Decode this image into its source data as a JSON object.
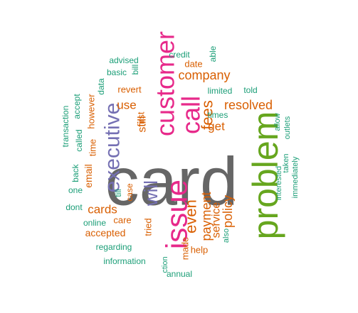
{
  "colors": {
    "background": "#ffffff",
    "teal": "#1b9e77",
    "orange": "#d95f02",
    "purple": "#7570b3",
    "magenta": "#e7298a",
    "green": "#66a61e",
    "gray": "#666666"
  },
  "words": [
    {
      "id": "card",
      "text": "card",
      "color": "gray",
      "rank": 1
    },
    {
      "id": "problem",
      "text": "problem",
      "color": "green",
      "rank": 2
    },
    {
      "id": "issue",
      "text": "issue",
      "color": "magenta",
      "rank": 3
    },
    {
      "id": "customer",
      "text": "customer",
      "color": "magenta",
      "rank": 3
    },
    {
      "id": "executive",
      "text": "executive",
      "color": "purple",
      "rank": 4
    },
    {
      "id": "call",
      "text": "call",
      "color": "magenta",
      "rank": 4
    },
    {
      "id": "will",
      "text": "will",
      "color": "purple",
      "rank": 5
    },
    {
      "id": "even",
      "text": "even",
      "color": "orange",
      "rank": 6
    },
    {
      "id": "fees",
      "text": "fees",
      "color": "orange",
      "rank": 6
    },
    {
      "id": "company",
      "text": "company",
      "color": "orange",
      "rank": 7
    },
    {
      "id": "resolved",
      "text": "resolved",
      "color": "orange",
      "rank": 7
    },
    {
      "id": "payment",
      "text": "payment",
      "color": "orange",
      "rank": 7
    },
    {
      "id": "policy",
      "text": "policy",
      "color": "orange",
      "rank": 7
    },
    {
      "id": "cards",
      "text": "cards",
      "color": "orange",
      "rank": 7
    },
    {
      "id": "service",
      "text": "service",
      "color": "orange",
      "rank": 7
    },
    {
      "id": "get",
      "text": "get",
      "color": "orange",
      "rank": 7
    },
    {
      "id": "use",
      "text": "use",
      "color": "orange",
      "rank": 7
    },
    {
      "id": "still",
      "text": "still",
      "color": "orange",
      "rank": 7
    },
    {
      "id": "accepted",
      "text": "accepted",
      "color": "orange",
      "rank": 8
    },
    {
      "id": "email",
      "text": "email",
      "color": "orange",
      "rank": 8
    },
    {
      "id": "however",
      "text": "however",
      "color": "orange",
      "rank": 8
    },
    {
      "id": "time",
      "text": "time",
      "color": "orange",
      "rank": 8
    },
    {
      "id": "revert",
      "text": "revert",
      "color": "orange",
      "rank": 8
    },
    {
      "id": "date",
      "text": "date",
      "color": "orange",
      "rank": 8
    },
    {
      "id": "first",
      "text": "first",
      "color": "orange",
      "rank": 8
    },
    {
      "id": "case",
      "text": "case",
      "color": "orange",
      "rank": 8
    },
    {
      "id": "care",
      "text": "care",
      "color": "orange",
      "rank": 8
    },
    {
      "id": "tried",
      "text": "tried",
      "color": "orange",
      "rank": 8
    },
    {
      "id": "made",
      "text": "made",
      "color": "orange",
      "rank": 8
    },
    {
      "id": "help",
      "text": "help",
      "color": "orange",
      "rank": 8
    },
    {
      "id": "times",
      "text": "times",
      "color": "teal",
      "rank": 9
    },
    {
      "id": "limited",
      "text": "limited",
      "color": "teal",
      "rank": 9
    },
    {
      "id": "told",
      "text": "told",
      "color": "teal",
      "rank": 9
    },
    {
      "id": "credit",
      "text": "credit",
      "color": "teal",
      "rank": 9
    },
    {
      "id": "able",
      "text": "able",
      "color": "teal",
      "rank": 9
    },
    {
      "id": "advised",
      "text": "advised",
      "color": "teal",
      "rank": 9
    },
    {
      "id": "basic",
      "text": "basic",
      "color": "teal",
      "rank": 9
    },
    {
      "id": "bill",
      "text": "bill",
      "color": "teal",
      "rank": 9
    },
    {
      "id": "data",
      "text": "data",
      "color": "teal",
      "rank": 9
    },
    {
      "id": "accept",
      "text": "accept",
      "color": "teal",
      "rank": 9
    },
    {
      "id": "called",
      "text": "called",
      "color": "teal",
      "rank": 9
    },
    {
      "id": "transaction",
      "text": "transaction",
      "color": "teal",
      "rank": 9
    },
    {
      "id": "back",
      "text": "back",
      "color": "teal",
      "rank": 9
    },
    {
      "id": "one",
      "text": "one",
      "color": "teal",
      "rank": 9
    },
    {
      "id": "till",
      "text": "till",
      "color": "teal",
      "rank": 9
    },
    {
      "id": "dont",
      "text": "dont",
      "color": "teal",
      "rank": 9
    },
    {
      "id": "online",
      "text": "online",
      "color": "teal",
      "rank": 9
    },
    {
      "id": "regarding",
      "text": "regarding",
      "color": "teal",
      "rank": 9
    },
    {
      "id": "information",
      "text": "information",
      "color": "teal",
      "rank": 9
    },
    {
      "id": "ction",
      "text": "ction",
      "color": "teal",
      "rank": 9
    },
    {
      "id": "annual",
      "text": "annual",
      "color": "teal",
      "rank": 9
    },
    {
      "id": "also",
      "text": "also",
      "color": "teal",
      "rank": 9
    },
    {
      "id": "interested",
      "text": "interested",
      "color": "teal",
      "rank": 9
    },
    {
      "id": "taken",
      "text": "taken",
      "color": "teal",
      "rank": 9
    },
    {
      "id": "immediately",
      "text": "immediately",
      "color": "teal",
      "rank": 9
    },
    {
      "id": "allow",
      "text": "allow",
      "color": "teal",
      "rank": 9
    },
    {
      "id": "outlets",
      "text": "outlets",
      "color": "teal",
      "rank": 9
    }
  ]
}
